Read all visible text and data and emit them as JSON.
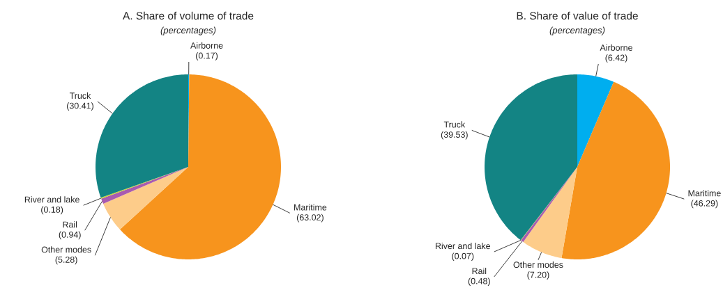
{
  "chart_data": [
    {
      "type": "pie",
      "title": "A. Share of volume of trade",
      "subtitle": "(percentages)",
      "categories": [
        "Airborne",
        "Maritime",
        "Other modes",
        "Rail",
        "River and lake",
        "Truck"
      ],
      "values": [
        0.17,
        63.02,
        5.28,
        0.94,
        0.18,
        30.41
      ],
      "value_labels": [
        "(0.17)",
        "(63.02)",
        "(5.28)",
        "(0.94)",
        "(0.18)",
        "(30.41)"
      ],
      "colors": [
        "#00aeef",
        "#f7941d",
        "#fdcc8a",
        "#a95bb0",
        "#c6d82e",
        "#138484"
      ]
    },
    {
      "type": "pie",
      "title": "B. Share of value of trade",
      "subtitle": "(percentages)",
      "categories": [
        "Airborne",
        "Maritime",
        "Other modes",
        "Rail",
        "River and lake",
        "Truck"
      ],
      "values": [
        6.42,
        46.29,
        7.2,
        0.48,
        0.07,
        39.53
      ],
      "value_labels": [
        "(6.42)",
        "(46.29)",
        "(7.20)",
        "(0.48)",
        "(0.07)",
        "(39.53)"
      ],
      "colors": [
        "#00aeef",
        "#f7941d",
        "#fdcc8a",
        "#a95bb0",
        "#c6d82e",
        "#138484"
      ]
    }
  ]
}
